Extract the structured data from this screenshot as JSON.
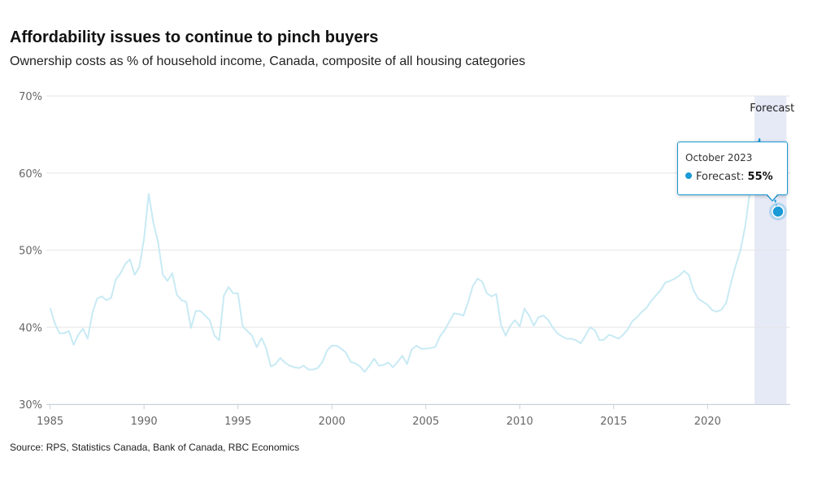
{
  "chart_data": {
    "type": "line",
    "title": "Affordability issues to continue to pinch buyers",
    "subtitle": "Ownership costs as % of household income, Canada, composite of all housing categories",
    "source": "Source: RPS, Statistics Canada, Bank of Canada, RBC Economics",
    "xlabel": "",
    "ylabel": "",
    "xlim": [
      1984.8,
      2024.4
    ],
    "ylim": [
      30,
      70
    ],
    "x_ticks": [
      1985,
      1990,
      1995,
      2000,
      2005,
      2010,
      2015,
      2020
    ],
    "y_ticks": [
      30,
      40,
      50,
      60,
      70
    ],
    "y_tick_labels": [
      "30%",
      "40%",
      "50%",
      "60%",
      "70%"
    ],
    "grid": true,
    "forecast_region": {
      "start": 2022.5,
      "end": 2024.2,
      "label": "Forecast"
    },
    "series": [
      {
        "name": "Ownership costs (% of household income)",
        "color": "#c8eaf4",
        "points": [
          [
            1985.0,
            42.5
          ],
          [
            1985.25,
            40.5
          ],
          [
            1985.5,
            39.2
          ],
          [
            1985.75,
            39.2
          ],
          [
            1986.0,
            39.5
          ],
          [
            1986.25,
            37.7
          ],
          [
            1986.5,
            39.0
          ],
          [
            1986.75,
            39.8
          ],
          [
            1987.0,
            38.5
          ],
          [
            1987.25,
            41.8
          ],
          [
            1987.5,
            43.7
          ],
          [
            1987.75,
            44.0
          ],
          [
            1988.0,
            43.5
          ],
          [
            1988.25,
            43.8
          ],
          [
            1988.5,
            46.2
          ],
          [
            1988.75,
            47.0
          ],
          [
            1989.0,
            48.2
          ],
          [
            1989.25,
            48.8
          ],
          [
            1989.5,
            46.8
          ],
          [
            1989.75,
            47.8
          ],
          [
            1990.0,
            51.5
          ],
          [
            1990.25,
            57.3
          ],
          [
            1990.5,
            53.5
          ],
          [
            1990.75,
            51.0
          ],
          [
            1991.0,
            46.8
          ],
          [
            1991.25,
            46.0
          ],
          [
            1991.5,
            47.0
          ],
          [
            1991.75,
            44.2
          ],
          [
            1992.0,
            43.5
          ],
          [
            1992.25,
            43.3
          ],
          [
            1992.5,
            39.9
          ],
          [
            1992.75,
            42.1
          ],
          [
            1993.0,
            42.1
          ],
          [
            1993.25,
            41.5
          ],
          [
            1993.5,
            40.9
          ],
          [
            1993.75,
            38.9
          ],
          [
            1994.0,
            38.3
          ],
          [
            1994.25,
            44.1
          ],
          [
            1994.5,
            45.2
          ],
          [
            1994.75,
            44.4
          ],
          [
            1995.0,
            44.4
          ],
          [
            1995.25,
            40.1
          ],
          [
            1995.5,
            39.5
          ],
          [
            1995.75,
            38.9
          ],
          [
            1996.0,
            37.4
          ],
          [
            1996.25,
            38.6
          ],
          [
            1996.5,
            37.3
          ],
          [
            1996.75,
            34.9
          ],
          [
            1997.0,
            35.2
          ],
          [
            1997.25,
            36.0
          ],
          [
            1997.5,
            35.4
          ],
          [
            1997.75,
            35.0
          ],
          [
            1998.0,
            34.8
          ],
          [
            1998.25,
            34.7
          ],
          [
            1998.5,
            35.0
          ],
          [
            1998.75,
            34.5
          ],
          [
            1999.0,
            34.5
          ],
          [
            1999.25,
            34.7
          ],
          [
            1999.5,
            35.5
          ],
          [
            1999.75,
            37.0
          ],
          [
            2000.0,
            37.6
          ],
          [
            2000.25,
            37.6
          ],
          [
            2000.5,
            37.2
          ],
          [
            2000.75,
            36.7
          ],
          [
            2001.0,
            35.5
          ],
          [
            2001.25,
            35.3
          ],
          [
            2001.5,
            34.9
          ],
          [
            2001.75,
            34.2
          ],
          [
            2002.0,
            35.0
          ],
          [
            2002.25,
            35.9
          ],
          [
            2002.5,
            35.0
          ],
          [
            2002.75,
            35.1
          ],
          [
            2003.0,
            35.4
          ],
          [
            2003.25,
            34.8
          ],
          [
            2003.5,
            35.5
          ],
          [
            2003.75,
            36.3
          ],
          [
            2004.0,
            35.2
          ],
          [
            2004.25,
            37.1
          ],
          [
            2004.5,
            37.6
          ],
          [
            2004.75,
            37.2
          ],
          [
            2005.0,
            37.2
          ],
          [
            2005.25,
            37.3
          ],
          [
            2005.5,
            37.4
          ],
          [
            2005.75,
            38.8
          ],
          [
            2006.0,
            39.6
          ],
          [
            2006.25,
            40.7
          ],
          [
            2006.5,
            41.8
          ],
          [
            2006.75,
            41.7
          ],
          [
            2007.0,
            41.5
          ],
          [
            2007.25,
            43.2
          ],
          [
            2007.5,
            45.3
          ],
          [
            2007.75,
            46.3
          ],
          [
            2008.0,
            45.9
          ],
          [
            2008.25,
            44.4
          ],
          [
            2008.5,
            44.0
          ],
          [
            2008.75,
            44.3
          ],
          [
            2009.0,
            40.3
          ],
          [
            2009.25,
            38.9
          ],
          [
            2009.5,
            40.2
          ],
          [
            2009.75,
            40.9
          ],
          [
            2010.0,
            40.1
          ],
          [
            2010.25,
            42.4
          ],
          [
            2010.5,
            41.5
          ],
          [
            2010.75,
            40.2
          ],
          [
            2011.0,
            41.3
          ],
          [
            2011.25,
            41.5
          ],
          [
            2011.5,
            41.0
          ],
          [
            2011.75,
            40.0
          ],
          [
            2012.0,
            39.2
          ],
          [
            2012.25,
            38.8
          ],
          [
            2012.5,
            38.5
          ],
          [
            2012.75,
            38.5
          ],
          [
            2013.0,
            38.3
          ],
          [
            2013.25,
            37.9
          ],
          [
            2013.5,
            38.9
          ],
          [
            2013.75,
            40.0
          ],
          [
            2014.0,
            39.6
          ],
          [
            2014.25,
            38.3
          ],
          [
            2014.5,
            38.4
          ],
          [
            2014.75,
            39.0
          ],
          [
            2015.0,
            38.8
          ],
          [
            2015.25,
            38.5
          ],
          [
            2015.5,
            39.0
          ],
          [
            2015.75,
            39.7
          ],
          [
            2016.0,
            40.8
          ],
          [
            2016.25,
            41.3
          ],
          [
            2016.5,
            42.0
          ],
          [
            2016.75,
            42.5
          ],
          [
            2017.0,
            43.4
          ],
          [
            2017.25,
            44.1
          ],
          [
            2017.5,
            44.8
          ],
          [
            2017.75,
            45.8
          ],
          [
            2018.0,
            46.0
          ],
          [
            2018.25,
            46.3
          ],
          [
            2018.5,
            46.7
          ],
          [
            2018.75,
            47.3
          ],
          [
            2019.0,
            46.8
          ],
          [
            2019.25,
            44.8
          ],
          [
            2019.5,
            43.7
          ],
          [
            2019.75,
            43.3
          ],
          [
            2020.0,
            42.9
          ],
          [
            2020.25,
            42.2
          ],
          [
            2020.5,
            42.0
          ],
          [
            2020.75,
            42.3
          ],
          [
            2021.0,
            43.2
          ],
          [
            2021.25,
            45.8
          ],
          [
            2021.5,
            48.0
          ],
          [
            2021.75,
            50.0
          ],
          [
            2022.0,
            53.0
          ],
          [
            2022.25,
            57.5
          ],
          [
            2022.5,
            61.0
          ]
        ]
      },
      {
        "name": "Forecast",
        "color": "#1a9ad6",
        "dashed": true,
        "points": [
          [
            2022.75,
            64.5
          ],
          [
            2023.75,
            55.0
          ]
        ]
      }
    ],
    "tooltip": {
      "date": "October 2023",
      "label": "Forecast:",
      "value": "55%",
      "x": 2023.75,
      "y": 55.0
    }
  }
}
